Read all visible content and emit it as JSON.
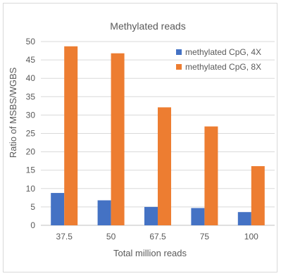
{
  "chart_data": {
    "type": "bar",
    "title": "Methylated reads",
    "xlabel": "Total million reads",
    "ylabel": "Ratio of MSBS/WGBS",
    "categories": [
      "37.5",
      "50",
      "67.5",
      "75",
      "100"
    ],
    "ylim": [
      0,
      50
    ],
    "yticks": [
      0,
      5,
      10,
      15,
      20,
      25,
      30,
      35,
      40,
      45,
      50
    ],
    "grid": true,
    "legend_position": "top-right",
    "series": [
      {
        "name": "methylated CpG, 4X",
        "color": "#4472C4",
        "values": [
          8.8,
          6.8,
          5.0,
          4.7,
          3.6
        ]
      },
      {
        "name": "methylated CpG, 8X",
        "color": "#ED7D31",
        "values": [
          48.7,
          46.8,
          32.1,
          26.9,
          16.1
        ]
      }
    ]
  }
}
